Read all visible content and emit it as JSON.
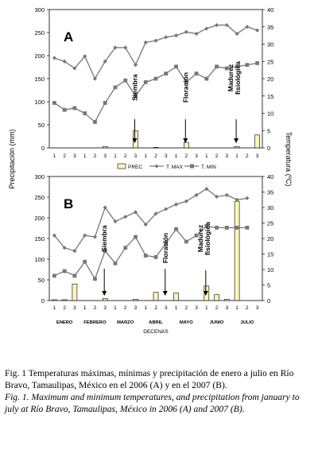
{
  "chart_data": {
    "type": "combo",
    "y_left_label": "Precipitación (mm)",
    "y_right_label": "Temperatura (ºC)",
    "x_label": "DECENAS",
    "months": [
      "ENERO",
      "FEBRERO",
      "MARZO",
      "ABRIL",
      "MAYO",
      "JUNIO",
      "JULIO"
    ],
    "decade_ticks": [
      "1",
      "2",
      "3",
      "1",
      "2",
      "3",
      "1",
      "2",
      "3",
      "1",
      "2",
      "3",
      "1",
      "2",
      "3",
      "1",
      "2",
      "3",
      "1",
      "2",
      "3"
    ],
    "legend": [
      "PREC",
      "T. MAX",
      "T. MIN"
    ],
    "panels": [
      {
        "label": "A",
        "y_left_range": [
          0,
          300
        ],
        "y_left_ticks": [
          "0",
          "50",
          "100",
          "150",
          "200",
          "250",
          "300"
        ],
        "y_right_range": [
          0,
          40
        ],
        "y_right_ticks": [
          "0",
          "5",
          "10",
          "15",
          "20",
          "25",
          "30",
          "35",
          "40"
        ],
        "series": [
          {
            "name": "PREC",
            "axis": "left",
            "values": [
              0,
              0,
              0,
              0,
              0,
              3,
              0,
              0,
              37,
              0,
              1,
              0,
              0,
              12,
              0,
              0,
              0,
              0,
              3,
              0,
              28
            ]
          },
          {
            "name": "T. MAX",
            "axis": "right",
            "values": [
              26,
              25,
              23,
              26.5,
              20,
              25,
              29,
              29,
              24,
              30.5,
              31,
              32,
              32.5,
              33.5,
              33,
              34.5,
              35.5,
              35.5,
              33,
              35,
              34
            ]
          },
          {
            "name": "T. MIN",
            "axis": "right",
            "values": [
              13,
              11,
              11.5,
              10,
              7.5,
              13,
              17.5,
              19.5,
              15,
              19,
              20,
              21.5,
              23.5,
              19,
              21.5,
              20,
              23.5,
              23,
              23.5,
              24,
              24.5
            ]
          }
        ],
        "annotations": [
          "Siembra",
          "Floración",
          "Madurez fisiológica"
        ]
      },
      {
        "label": "B",
        "y_left_range": [
          0,
          300
        ],
        "y_left_ticks": [
          "0",
          "50",
          "100",
          "150",
          "200",
          "250",
          "300"
        ],
        "y_right_range": [
          0,
          40
        ],
        "y_right_ticks": [
          "0",
          "5",
          "10",
          "15",
          "20",
          "25",
          "30",
          "35",
          "40"
        ],
        "series": [
          {
            "name": "PREC",
            "axis": "left",
            "values": [
              2,
              2,
              40,
              0,
              0,
              5,
              0,
              0,
              3,
              0,
              20,
              0,
              18,
              0,
              0,
              35,
              14,
              3,
              240,
              0,
              0
            ]
          },
          {
            "name": "T. MAX",
            "axis": "right",
            "values": [
              21,
              17,
              16,
              21,
              20.5,
              30,
              25.5,
              27,
              28.5,
              24.5,
              28,
              29.5,
              31,
              32,
              34,
              36,
              33.5,
              34,
              32.5,
              33,
              0
            ]
          },
          {
            "name": "T. MIN",
            "axis": "right",
            "values": [
              8,
              9.5,
              8,
              12.5,
              7,
              16,
              12,
              17,
              20.5,
              14.5,
              14,
              18.5,
              23,
              19,
              21,
              24,
              23.5,
              23.5,
              23.5,
              23.5,
              0
            ]
          }
        ],
        "annotations": [
          "Siembra",
          "Floración",
          "Madurez fisiológica"
        ]
      }
    ]
  },
  "caption": {
    "es": "Fig. 1 Temperaturas máximas, mínimas y precipitación de enero a julio en Río Bravo, Tamaulipas, México en el 2006 (A) y en el 2007 (B).",
    "en": "Fig. 1. Maximum and minimum temperatures, and precipitation from january to july at Río Bravo, Tamaulipas, México in 2006 (A) and 2007 (B)."
  }
}
